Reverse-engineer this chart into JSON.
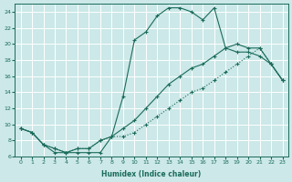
{
  "xlabel": "Humidex (Indice chaleur)",
  "bg_color": "#cce8e8",
  "grid_color": "#ffffff",
  "line_color": "#1a6b5a",
  "xlim": [
    -0.5,
    23.5
  ],
  "ylim": [
    6,
    25
  ],
  "xticks": [
    0,
    1,
    2,
    3,
    4,
    5,
    6,
    7,
    8,
    9,
    10,
    11,
    12,
    13,
    14,
    15,
    16,
    17,
    18,
    19,
    20,
    21,
    22,
    23
  ],
  "yticks": [
    6,
    8,
    10,
    12,
    14,
    16,
    18,
    20,
    22,
    24
  ],
  "line1_x": [
    0,
    1,
    2,
    3,
    4,
    5,
    6,
    7,
    8,
    9,
    10,
    11,
    12,
    13,
    14,
    15,
    16,
    17,
    18,
    19,
    20,
    21,
    22,
    23
  ],
  "line1_y": [
    9.5,
    9.0,
    7.5,
    6.5,
    6.5,
    6.5,
    6.5,
    6.5,
    8.5,
    13.5,
    20.5,
    21.5,
    23.5,
    24.5,
    24.5,
    24.0,
    23.0,
    24.5,
    19.5,
    19.0,
    19.0,
    18.5,
    17.5,
    15.5
  ],
  "line2_x": [
    0,
    1,
    2,
    3,
    4,
    5,
    6,
    7,
    8,
    9,
    10,
    11,
    12,
    13,
    14,
    15,
    16,
    17,
    18,
    19,
    20,
    21,
    22,
    23
  ],
  "line2_y": [
    9.5,
    9.0,
    7.5,
    7.0,
    6.5,
    7.0,
    7.0,
    8.0,
    8.5,
    9.5,
    10.5,
    12.0,
    13.5,
    15.0,
    16.0,
    17.0,
    17.5,
    18.5,
    19.5,
    20.0,
    19.5,
    19.5,
    17.5,
    15.5
  ],
  "line3_x": [
    0,
    1,
    2,
    3,
    4,
    5,
    6,
    7,
    8,
    9,
    10,
    11,
    12,
    13,
    14,
    15,
    16,
    17,
    18,
    19,
    20,
    21,
    22,
    23
  ],
  "line3_y": [
    9.5,
    9.0,
    7.5,
    7.0,
    6.5,
    7.0,
    7.0,
    8.0,
    8.5,
    8.5,
    9.0,
    10.0,
    11.0,
    12.0,
    13.0,
    14.0,
    14.5,
    15.5,
    16.5,
    17.5,
    18.5,
    19.5,
    17.5,
    15.5
  ]
}
